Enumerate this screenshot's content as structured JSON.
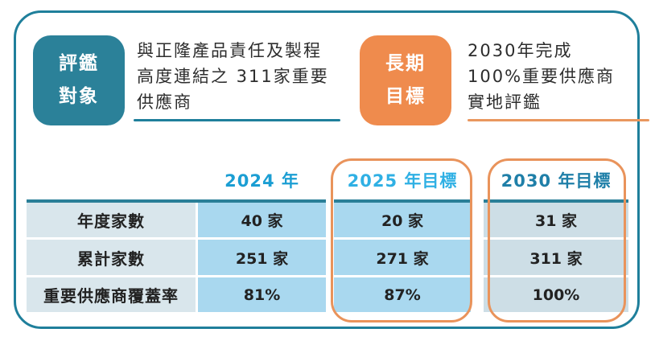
{
  "colors": {
    "frame_border": "#1f7f9b",
    "teal_badge": "#2b8199",
    "orange_badge": "#ef8b4d",
    "highlight_outline": "#e9935b",
    "header_2024": "#1b9ed3",
    "header_2025": "#2fb0e4",
    "header_2030": "#1f7fa8",
    "label_cell_bg": "#d9e6ec",
    "blue_cell_bg": "#a9d8ef",
    "gray_cell_bg": "#cddee6"
  },
  "header_left": {
    "badge": {
      "line1": "評鑑",
      "line2": "對象"
    },
    "lines": [
      "與正隆產品責任及製程",
      "高度連結之 311家重要",
      "供應商"
    ]
  },
  "header_right": {
    "badge": {
      "line1": "長期",
      "line2": "目標"
    },
    "lines": [
      "2030年完成",
      "100%重要供應商",
      "實地評鑑"
    ]
  },
  "table": {
    "columns": [
      {
        "header": ""
      },
      {
        "header": "2024 年"
      },
      {
        "header": "2025 年目標"
      },
      {
        "header": "2030 年目標"
      }
    ],
    "rows": [
      {
        "label": "年度家數",
        "values": [
          "40 家",
          "20 家",
          "31 家"
        ]
      },
      {
        "label": "累計家數",
        "values": [
          "251 家",
          "271 家",
          "311 家"
        ]
      },
      {
        "label": "重要供應商覆蓋率",
        "values": [
          "81%",
          "87%",
          "100%"
        ]
      }
    ]
  }
}
